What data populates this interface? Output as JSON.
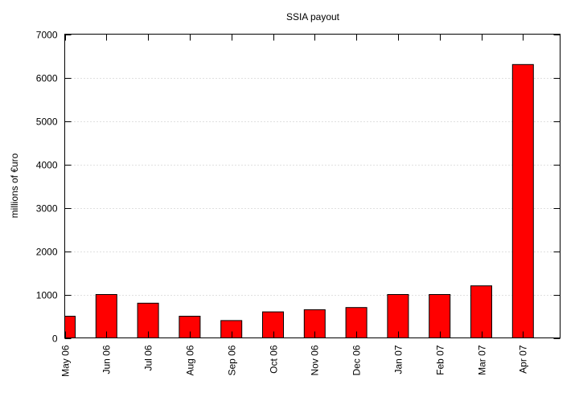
{
  "chart_data": {
    "type": "bar",
    "title": "SSIA payout",
    "xlabel": "",
    "ylabel": "millions of €uro",
    "categories": [
      "May 06",
      "Jun 06",
      "Jul 06",
      "Aug 06",
      "Sep 06",
      "Oct 06",
      "Nov 06",
      "Dec 06",
      "Jan 07",
      "Feb 07",
      "Mar 07",
      "Apr 07"
    ],
    "values": [
      500,
      1000,
      800,
      500,
      400,
      600,
      650,
      700,
      1000,
      1000,
      1200,
      6300
    ],
    "ylim": [
      0,
      7000
    ],
    "yticks": [
      0,
      1000,
      2000,
      3000,
      4000,
      5000,
      6000,
      7000
    ],
    "grid": {
      "horizontal": true,
      "vertical": false,
      "style": "dotted"
    },
    "legend": "none",
    "colors": {
      "bar": "#ff0000",
      "bar_outline": "#000000",
      "grid": "#c0c0c0"
    }
  }
}
